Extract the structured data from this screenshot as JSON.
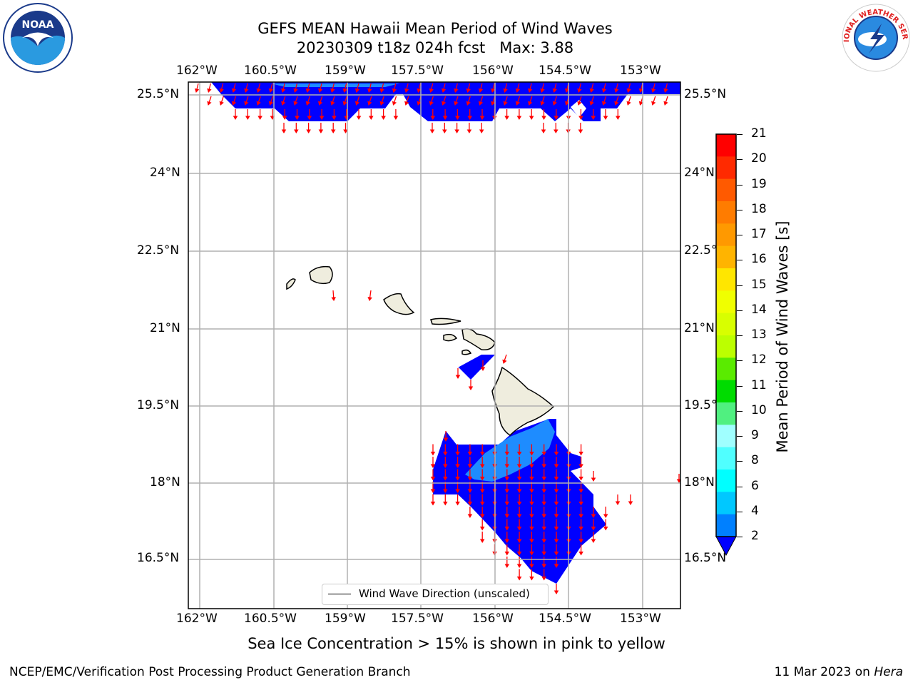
{
  "header": {
    "title_line1": "GEFS MEAN Hawaii Mean Period of Wind Waves",
    "title_line2": "20230309 t18z 024h fcst   Max: 3.88"
  },
  "logos": {
    "noaa_text": "NOAA",
    "nws_text": "NATIONAL WEATHER SERVICE"
  },
  "map": {
    "lon_ticks": [
      "162°W",
      "160.5°W",
      "159°W",
      "157.5°W",
      "156°W",
      "154.5°W",
      "153°W"
    ],
    "lat_ticks": [
      "25.5°N",
      "24°N",
      "22.5°N",
      "21°N",
      "19.5°N",
      "18°N",
      "16.5°N"
    ],
    "legend_label": "Wind Wave Direction (unscaled)",
    "colors": {
      "low_fill": "#0000ff",
      "mid_fill": "#1e8cff",
      "arrows": "#ff0000",
      "land": "#efedde"
    }
  },
  "colorbar": {
    "label": "Mean Period of Wind Waves [s]",
    "tick_labels": [
      "21",
      "20",
      "19",
      "18",
      "17",
      "16",
      "15",
      "14",
      "13",
      "12",
      "11",
      "10",
      "9",
      "8",
      "6",
      "4",
      "2"
    ],
    "colors_top_to_bottom": [
      "#ff0000",
      "#ff2a00",
      "#ff5a00",
      "#ff7c00",
      "#ff9900",
      "#ffb400",
      "#ffe600",
      "#f0ff00",
      "#d8ff00",
      "#bcff00",
      "#5aeb00",
      "#00dc00",
      "#50f080",
      "#a0ffff",
      "#50ffff",
      "#00ffff",
      "#00c8ff",
      "#0080ff"
    ],
    "extend_color": "#0000ff"
  },
  "footer": {
    "note": "Sea Ice Concentration > 15% is shown in pink to yellow",
    "left": "NCEP/EMC/Verification Post Processing Product Generation Branch",
    "right_prefix": "11 Mar 2023 on ",
    "right_host": "Hera"
  }
}
